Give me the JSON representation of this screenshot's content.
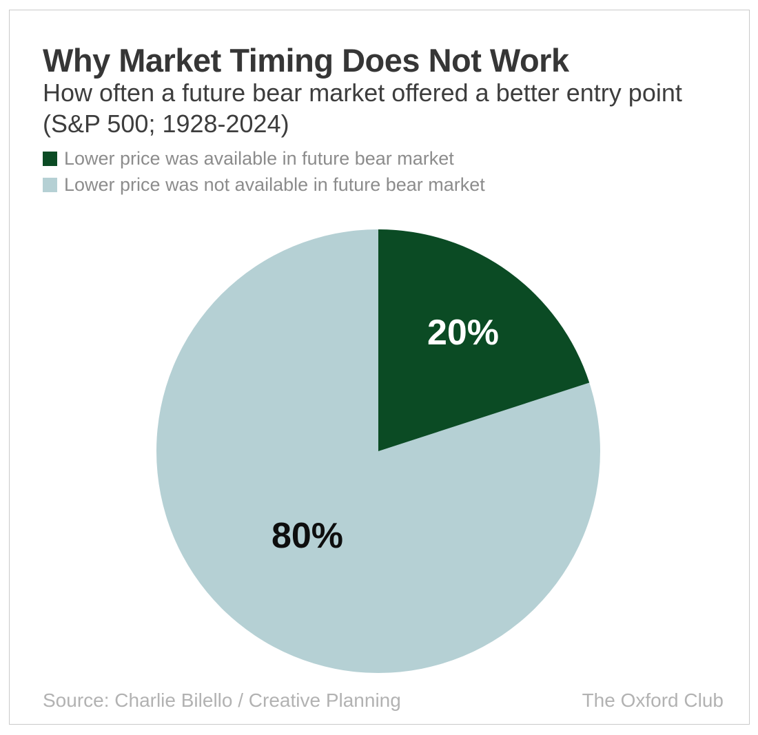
{
  "header": {
    "title": "Why Market Timing Does Not Work",
    "subtitle_line1": "How often a future bear market offered a better entry point",
    "subtitle_line2": "(S&P 500; 1928-2024)"
  },
  "legend": {
    "items": [
      {
        "label": "Lower price was available in future bear market",
        "color": "#0b4b24"
      },
      {
        "label": "Lower price was not available in future bear market",
        "color": "#b5d0d4"
      }
    ]
  },
  "footer": {
    "source": "Source: Charlie Bilello / Creative Planning",
    "brand": "The Oxford Club"
  },
  "chart_data": {
    "type": "pie",
    "title": "Why Market Timing Does Not Work",
    "subtitle": "How often a future bear market offered a better entry point (S&P 500; 1928-2024)",
    "categories": [
      "Lower price was available in future bear market",
      "Lower price was not available in future bear market"
    ],
    "values": [
      20,
      80
    ],
    "unit": "%",
    "slice_labels": [
      "20%",
      "80%"
    ],
    "slice_label_colors": [
      "#ffffff",
      "#0e0e0e"
    ],
    "colors": [
      "#0b4b24",
      "#b5d0d4"
    ],
    "start_angle_deg": 0,
    "direction": "clockwise",
    "legend_position": "top-left",
    "source": "Source: Charlie Bilello / Creative Planning",
    "attribution": "The Oxford Club"
  }
}
